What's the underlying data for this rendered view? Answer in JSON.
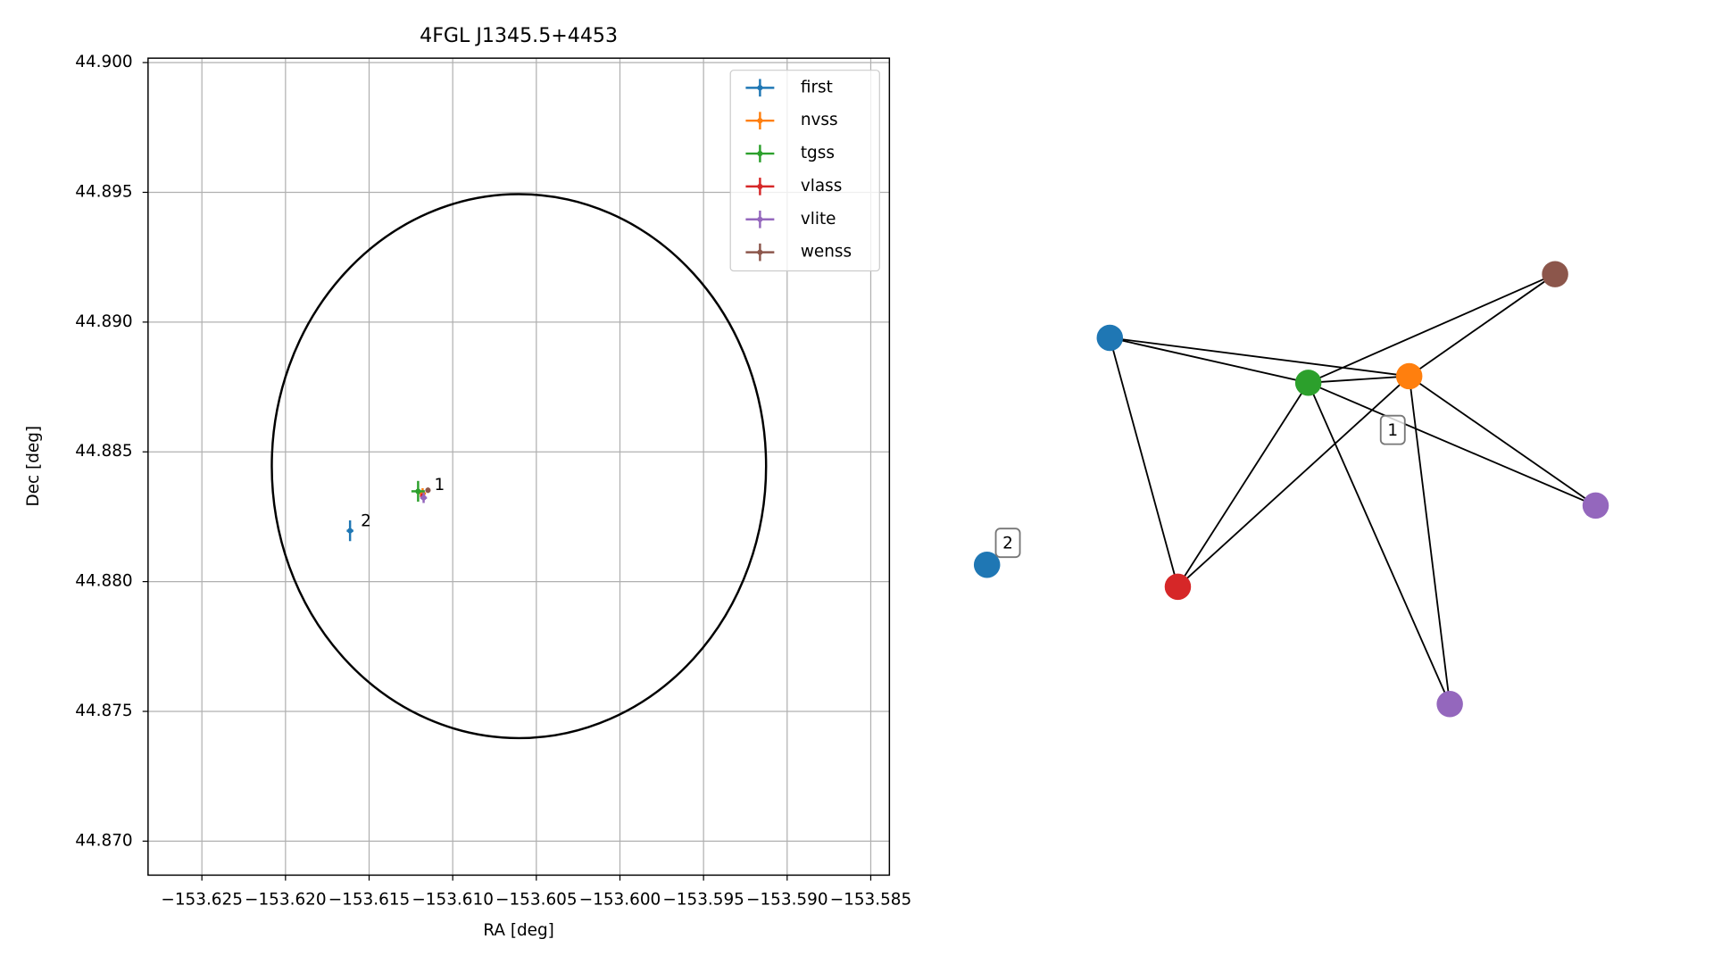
{
  "chart_data": [
    {
      "type": "scatter",
      "title": "4FGL J1345.5+4453",
      "x_label": "RA [deg]",
      "y_label": "Dec [deg]",
      "xlim": [
        -153.62822,
        -153.583885
      ],
      "ylim": [
        44.86869,
        44.90017
      ],
      "xticks": [
        {
          "value": -153.625,
          "label": "−153.625"
        },
        {
          "value": -153.62,
          "label": "−153.620"
        },
        {
          "value": -153.615,
          "label": "−153.615"
        },
        {
          "value": -153.61,
          "label": "−153.610"
        },
        {
          "value": -153.605,
          "label": "−153.605"
        },
        {
          "value": -153.6,
          "label": "−153.600"
        },
        {
          "value": -153.595,
          "label": "−153.595"
        },
        {
          "value": -153.59,
          "label": "−153.590"
        },
        {
          "value": -153.585,
          "label": "−153.585"
        }
      ],
      "yticks": [
        {
          "value": 44.87,
          "label": "44.870"
        },
        44.875,
        {
          "value": 44.88,
          "label": "44.880"
        },
        44.885,
        {
          "value": 44.89,
          "label": "44.890"
        },
        44.895,
        {
          "value": 44.9,
          "label": "44.900"
        }
      ],
      "grid": true,
      "legend": "upper right",
      "series": [
        {
          "name": "first",
          "color": "#1f77b4",
          "x": [
            -153.61614
          ],
          "values": [
            44.88196
          ],
          "xerr": [
            0.0002
          ],
          "yerr": [
            0.0004
          ]
        },
        {
          "name": "nvss",
          "color": "#ff7f0e",
          "x": [
            -153.6118
          ],
          "values": [
            44.8834
          ],
          "xerr": [
            0.0002
          ],
          "yerr": [
            0.0002
          ]
        },
        {
          "name": "tgss",
          "color": "#2ca02c",
          "x": [
            -153.61207
          ],
          "values": [
            44.88348
          ],
          "xerr": [
            0.0004
          ],
          "yerr": [
            0.0004
          ]
        },
        {
          "name": "vlass",
          "color": "#d62728",
          "x": [
            -153.6118
          ],
          "values": [
            44.8833
          ],
          "xerr": [
            0.0001
          ],
          "yerr": [
            0.0001
          ]
        },
        {
          "name": "vlite",
          "color": "#9467bd",
          "x": [
            -153.61174
          ],
          "values": [
            44.88323
          ],
          "xerr": [
            0.0002
          ],
          "yerr": [
            0.0002
          ]
        },
        {
          "name": "wenss",
          "color": "#8c564b",
          "x": [
            -153.61148
          ],
          "values": [
            44.88352
          ],
          "xerr": [
            0.0001
          ],
          "yerr": [
            0.0001
          ]
        }
      ],
      "circle": {
        "center": [
          -153.60604,
          44.88445
        ],
        "ra_radius": 0.01478,
        "dec_radius": 0.01048,
        "color": "#000000"
      },
      "annotations": [
        {
          "text": "1",
          "x": -153.6111,
          "y": 44.8837
        },
        {
          "text": "2",
          "x": -153.6155,
          "y": 44.8823
        }
      ]
    },
    {
      "type": "network",
      "nodes": [
        {
          "color": "#1f77b4"
        },
        {
          "color": "#ff7f0e"
        },
        {
          "color": "#2ca02c"
        },
        {
          "color": "#8c564b"
        },
        {
          "color": "#9467bd"
        },
        {
          "color": "#d62728"
        },
        {
          "color": "#9467bd"
        },
        {
          "color": "#1f77b4"
        }
      ],
      "edges": [
        [
          0,
          2
        ],
        [
          0,
          1
        ],
        [
          0,
          5
        ],
        [
          2,
          1
        ],
        [
          2,
          3
        ],
        [
          2,
          5
        ],
        [
          2,
          6
        ],
        [
          2,
          4
        ],
        [
          1,
          3
        ],
        [
          1,
          4
        ],
        [
          1,
          5
        ],
        [
          1,
          6
        ]
      ],
      "labels": [
        "1",
        "2"
      ]
    }
  ]
}
